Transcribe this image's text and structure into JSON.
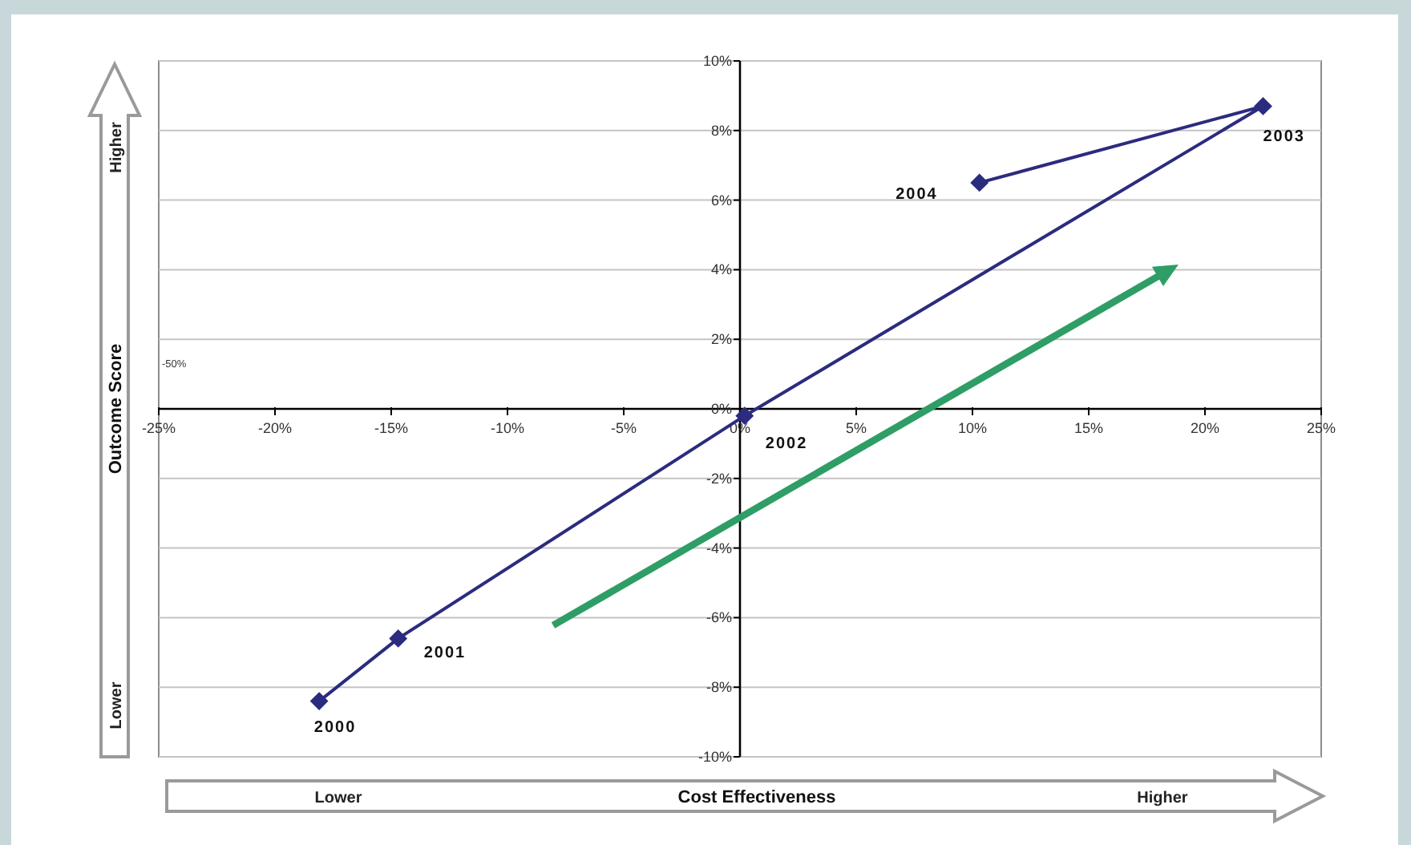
{
  "chart_data": {
    "type": "line",
    "xlabel": "Cost Effectiveness",
    "ylabel": "Outcome Score",
    "x": [
      -18.1,
      -14.7,
      0.2,
      22.5,
      10.3
    ],
    "series": [
      {
        "color": "#2b2b7f",
        "values": [
          -8.4,
          -6.6,
          -0.2,
          8.7,
          6.5
        ]
      }
    ],
    "xlim": [
      -25,
      25
    ],
    "ylim": [
      -10,
      10
    ],
    "xticks": [
      {
        "value": -25,
        "label": "-25%"
      },
      {
        "value": -20,
        "label": "-20%"
      },
      {
        "value": -15,
        "label": "-15%"
      },
      {
        "value": -10,
        "label": "-10%"
      },
      {
        "value": -5,
        "label": "-5%"
      },
      {
        "value": 0,
        "label": "0%"
      },
      {
        "value": 5,
        "label": "5%"
      },
      {
        "value": 10,
        "label": "10%"
      },
      {
        "value": 15,
        "label": "15%"
      },
      {
        "value": 20,
        "label": "20%"
      },
      {
        "value": 25,
        "label": "25%"
      }
    ],
    "yticks": [
      {
        "value": -10,
        "label": "-10%"
      },
      {
        "value": -8,
        "label": "-8%"
      },
      {
        "value": -6,
        "label": "-6%"
      },
      {
        "value": -4,
        "label": "-4%"
      },
      {
        "value": -2,
        "label": "-2%"
      },
      {
        "value": 0,
        "label": "0%"
      },
      {
        "value": 2,
        "label": "2%"
      },
      {
        "value": 4,
        "label": "4%"
      },
      {
        "value": 6,
        "label": "6%"
      },
      {
        "value": 8,
        "label": "8%"
      },
      {
        "value": 10,
        "label": "10%"
      }
    ],
    "grid": "y",
    "marker": "diamond",
    "line_style": "solid",
    "annotations": [
      {
        "text": "2000",
        "x": -18.1,
        "y": -8.4
      },
      {
        "text": "2001",
        "x": -14.7,
        "y": -6.6
      },
      {
        "text": "2002",
        "x": 0.2,
        "y": -0.2
      },
      {
        "text": "2003",
        "x": 22.5,
        "y": 8.7
      },
      {
        "text": "2004",
        "x": 10.3,
        "y": 6.5
      },
      "Lower",
      "Higher",
      "Lower",
      "Higher",
      "-50%"
    ]
  }
}
